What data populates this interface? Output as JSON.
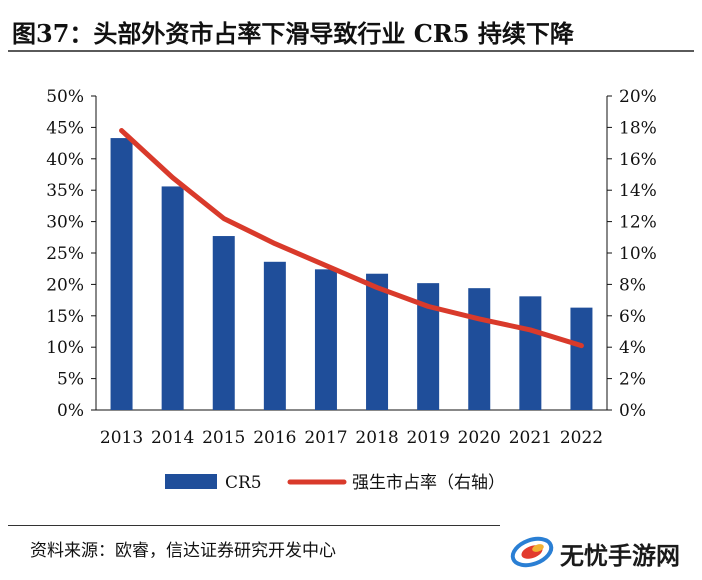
{
  "title": "图37：头部外资市占率下滑导致行业 CR5 持续下降",
  "source": "资料来源：欧睿，信达证券研究开发中心",
  "watermark": "无忧手游网",
  "colors": {
    "bar": "#1f4e9a",
    "line": "#d93a2b",
    "axis": "#111111"
  },
  "chart_data": {
    "type": "bar",
    "categories": [
      "2013",
      "2014",
      "2015",
      "2016",
      "2017",
      "2018",
      "2019",
      "2020",
      "2021",
      "2022"
    ],
    "series": [
      {
        "name": "CR5",
        "type": "bar",
        "axis": "left",
        "values": [
          43.3,
          35.6,
          27.7,
          23.6,
          22.4,
          21.7,
          20.2,
          19.4,
          18.1,
          16.3
        ]
      },
      {
        "name": "强生市占率（右轴）",
        "type": "line",
        "axis": "right",
        "values": [
          17.8,
          14.8,
          12.2,
          10.6,
          9.2,
          7.8,
          6.6,
          5.8,
          5.1,
          4.1
        ]
      }
    ],
    "y_left": {
      "min": 0,
      "max": 50,
      "step": 5,
      "ticks": [
        "0%",
        "5%",
        "10%",
        "15%",
        "20%",
        "25%",
        "30%",
        "35%",
        "40%",
        "45%",
        "50%"
      ]
    },
    "y_right": {
      "min": 0,
      "max": 20,
      "step": 2,
      "ticks": [
        "0%",
        "2%",
        "4%",
        "6%",
        "8%",
        "10%",
        "12%",
        "14%",
        "16%",
        "18%",
        "20%"
      ]
    },
    "grid": false,
    "legend": "bottom"
  }
}
